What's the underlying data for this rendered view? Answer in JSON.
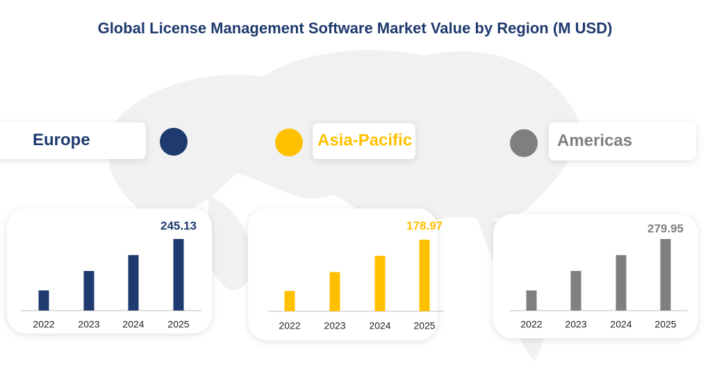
{
  "title": "Global License Management Software Market Value by Region (M USD)",
  "chart_data": [
    {
      "type": "bar",
      "title": "Europe",
      "color": "#1f3a6e",
      "categories": [
        "2022",
        "2023",
        "2024",
        "2025"
      ],
      "values": [
        69,
        135.6,
        190,
        245.13
      ]
    },
    {
      "type": "bar",
      "title": "Asia-Pacific",
      "color": "#ffc000",
      "categories": [
        "2022",
        "2023",
        "2024",
        "2025"
      ],
      "values": [
        50.9,
        98,
        138.6,
        178.97
      ]
    },
    {
      "type": "bar",
      "title": "Americas",
      "color": "#7f7f7f",
      "categories": [
        "2022",
        "2023",
        "2024",
        "2025"
      ],
      "values": [
        78.8,
        155,
        217,
        279.95
      ]
    }
  ]
}
